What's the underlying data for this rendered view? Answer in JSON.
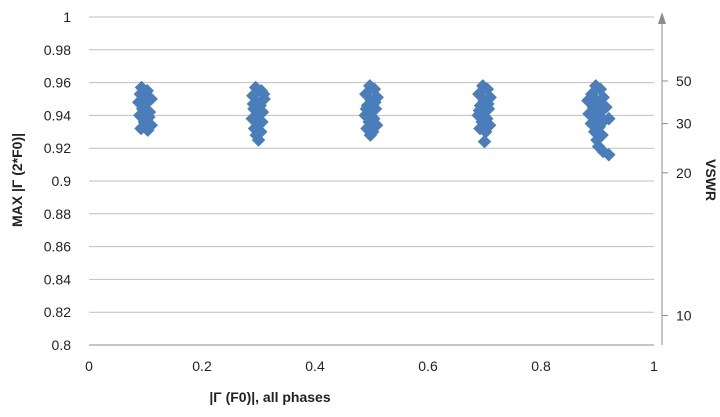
{
  "chart_data": {
    "type": "scatter",
    "title": "",
    "xlabel": "|Γ (F0)|, all phases",
    "ylabel": "MAX |Γ (2*F0)|",
    "y2label": "VSWR",
    "xlim": [
      0,
      1
    ],
    "ylim": [
      0.8,
      1
    ],
    "x_ticks": [
      "0",
      "0.2",
      "0.4",
      "0.6",
      "0.8",
      "1"
    ],
    "y_ticks": [
      "0.8",
      "0.82",
      "0.84",
      "0.86",
      "0.88",
      "0.9",
      "0.92",
      "0.94",
      "0.96",
      "0.98",
      "1"
    ],
    "vswr_ticks": [
      {
        "label": "10",
        "gamma": 0.818
      },
      {
        "label": "20",
        "gamma": 0.905
      },
      {
        "label": "30",
        "gamma": 0.935
      },
      {
        "label": "50",
        "gamma": 0.961
      }
    ],
    "grid": {
      "horizontal": true,
      "vertical": false
    },
    "legend": "none",
    "marker_color": "#4a7ebb",
    "series": [
      {
        "values": [
          [
            0.093,
            0.957
          ],
          [
            0.103,
            0.955
          ],
          [
            0.097,
            0.952
          ],
          [
            0.11,
            0.95
          ],
          [
            0.088,
            0.948
          ],
          [
            0.1,
            0.947
          ],
          [
            0.095,
            0.944
          ],
          [
            0.107,
            0.942
          ],
          [
            0.09,
            0.94
          ],
          [
            0.102,
            0.938
          ],
          [
            0.098,
            0.936
          ],
          [
            0.11,
            0.934
          ],
          [
            0.092,
            0.932
          ],
          [
            0.104,
            0.931
          ],
          [
            0.096,
            0.945
          ],
          [
            0.106,
            0.939
          ],
          [
            0.091,
            0.953
          ],
          [
            0.101,
            0.943
          ],
          [
            0.295,
            0.957
          ],
          [
            0.305,
            0.955
          ],
          [
            0.29,
            0.952
          ],
          [
            0.31,
            0.95
          ],
          [
            0.298,
            0.948
          ],
          [
            0.303,
            0.946
          ],
          [
            0.292,
            0.944
          ],
          [
            0.307,
            0.942
          ],
          [
            0.297,
            0.94
          ],
          [
            0.289,
            0.938
          ],
          [
            0.306,
            0.936
          ],
          [
            0.3,
            0.934
          ],
          [
            0.293,
            0.932
          ],
          [
            0.304,
            0.93
          ],
          [
            0.296,
            0.928
          ],
          [
            0.3,
            0.925
          ],
          [
            0.309,
            0.953
          ],
          [
            0.291,
            0.947
          ],
          [
            0.497,
            0.958
          ],
          [
            0.505,
            0.956
          ],
          [
            0.49,
            0.953
          ],
          [
            0.51,
            0.951
          ],
          [
            0.5,
            0.949
          ],
          [
            0.493,
            0.946
          ],
          [
            0.507,
            0.944
          ],
          [
            0.498,
            0.942
          ],
          [
            0.489,
            0.94
          ],
          [
            0.504,
            0.938
          ],
          [
            0.496,
            0.936
          ],
          [
            0.509,
            0.934
          ],
          [
            0.492,
            0.932
          ],
          [
            0.502,
            0.93
          ],
          [
            0.498,
            0.928
          ],
          [
            0.506,
            0.948
          ],
          [
            0.491,
            0.944
          ],
          [
            0.697,
            0.958
          ],
          [
            0.705,
            0.956
          ],
          [
            0.69,
            0.953
          ],
          [
            0.71,
            0.951
          ],
          [
            0.7,
            0.949
          ],
          [
            0.693,
            0.946
          ],
          [
            0.707,
            0.944
          ],
          [
            0.698,
            0.942
          ],
          [
            0.689,
            0.94
          ],
          [
            0.704,
            0.938
          ],
          [
            0.696,
            0.936
          ],
          [
            0.709,
            0.934
          ],
          [
            0.692,
            0.932
          ],
          [
            0.702,
            0.93
          ],
          [
            0.7,
            0.924
          ],
          [
            0.706,
            0.947
          ],
          [
            0.691,
            0.943
          ],
          [
            0.897,
            0.958
          ],
          [
            0.905,
            0.956
          ],
          [
            0.89,
            0.953
          ],
          [
            0.91,
            0.951
          ],
          [
            0.883,
            0.949
          ],
          [
            0.9,
            0.947
          ],
          [
            0.893,
            0.945
          ],
          [
            0.907,
            0.943
          ],
          [
            0.885,
            0.941
          ],
          [
            0.898,
            0.939
          ],
          [
            0.912,
            0.937
          ],
          [
            0.92,
            0.938
          ],
          [
            0.889,
            0.935
          ],
          [
            0.903,
            0.933
          ],
          [
            0.895,
            0.93
          ],
          [
            0.908,
            0.928
          ],
          [
            0.899,
            0.925
          ],
          [
            0.902,
            0.921
          ],
          [
            0.91,
            0.918
          ],
          [
            0.92,
            0.916
          ],
          [
            0.895,
            0.95
          ],
          [
            0.915,
            0.945
          ]
        ]
      }
    ]
  }
}
